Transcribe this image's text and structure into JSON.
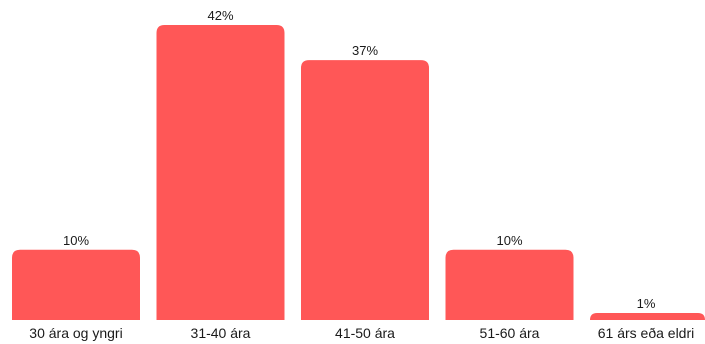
{
  "chart_data": {
    "type": "bar",
    "categories": [
      "30 ára og yngri",
      "31-40 ára",
      "41-50 ára",
      "51-60 ára",
      "61 árs eða eldri"
    ],
    "values": [
      10,
      42,
      37,
      10,
      1
    ],
    "data_labels": [
      "10%",
      "42%",
      "37%",
      "10%",
      "1%"
    ],
    "ylim": [
      0,
      42
    ],
    "grid": false,
    "legend": "none",
    "bar_color": "#ff5757"
  }
}
